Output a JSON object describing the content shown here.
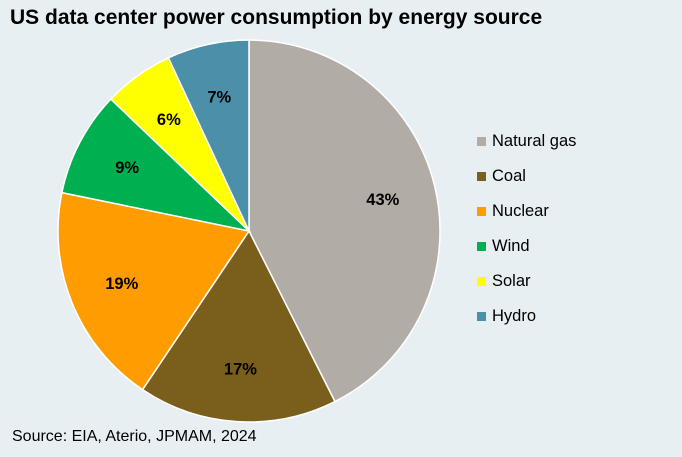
{
  "chart_data": {
    "type": "pie",
    "title": "US data center power consumption by energy source",
    "source": "Source: EIA, Aterio, JPMAM, 2024",
    "unit": "%",
    "start_angle_deg": 0,
    "direction": "clockwise",
    "slices": [
      {
        "name": "Natural gas",
        "value": 43,
        "label": "43%",
        "color": "#b2aca7"
      },
      {
        "name": "Coal",
        "value": 17,
        "label": "17%",
        "color": "#7a5e1b"
      },
      {
        "name": "Nuclear",
        "value": 19,
        "label": "19%",
        "color": "#ff9c00"
      },
      {
        "name": "Wind",
        "value": 9,
        "label": "9%",
        "color": "#00b050"
      },
      {
        "name": "Solar",
        "value": 6,
        "label": "6%",
        "color": "#ffff00"
      },
      {
        "name": "Hydro",
        "value": 7,
        "label": "7%",
        "color": "#4b8fa8"
      }
    ],
    "legend_position": "right"
  },
  "colors": {
    "background": "#e7eff3",
    "slice_border": "#ffffff"
  }
}
